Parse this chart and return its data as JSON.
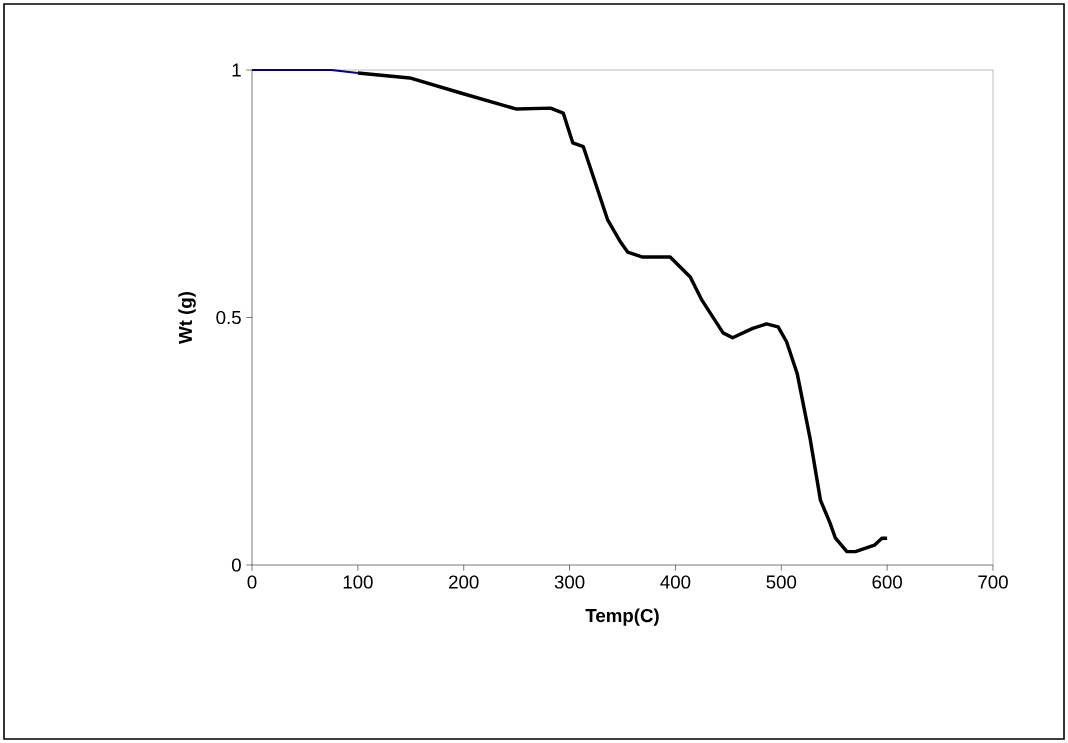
{
  "chart_data": {
    "type": "line",
    "xlabel": "Temp(C)",
    "ylabel": "Wt (g)",
    "xlim": [
      0,
      700
    ],
    "xticks": [
      0,
      100,
      200,
      300,
      400,
      500,
      600,
      700
    ],
    "ylim": [
      0,
      1
    ],
    "yticks": [
      0,
      0.5,
      1
    ],
    "grid": false,
    "legend": false,
    "marker": "none",
    "line_style": "solid",
    "series": [
      {
        "color": "#000080",
        "x": [
          0,
          25,
          50,
          75,
          100
        ],
        "values": [
          1,
          1,
          1,
          1,
          0.994
        ]
      },
      {
        "color": "#000000",
        "x": [
          100,
          149,
          198,
          250,
          282,
          294,
          303,
          313,
          336,
          348,
          355,
          369,
          395,
          414,
          425,
          445,
          454,
          473,
          486,
          497,
          505,
          515,
          527,
          537,
          546,
          551,
          562,
          570,
          588,
          595,
          600
        ],
        "values": [
          0.994,
          0.984,
          0.953,
          0.921,
          0.923,
          0.913,
          0.853,
          0.845,
          0.697,
          0.653,
          0.632,
          0.622,
          0.622,
          0.582,
          0.535,
          0.469,
          0.459,
          0.478,
          0.487,
          0.481,
          0.451,
          0.387,
          0.258,
          0.131,
          0.085,
          0.055,
          0.027,
          0.027,
          0.04,
          0.054,
          0.054
        ]
      }
    ]
  }
}
